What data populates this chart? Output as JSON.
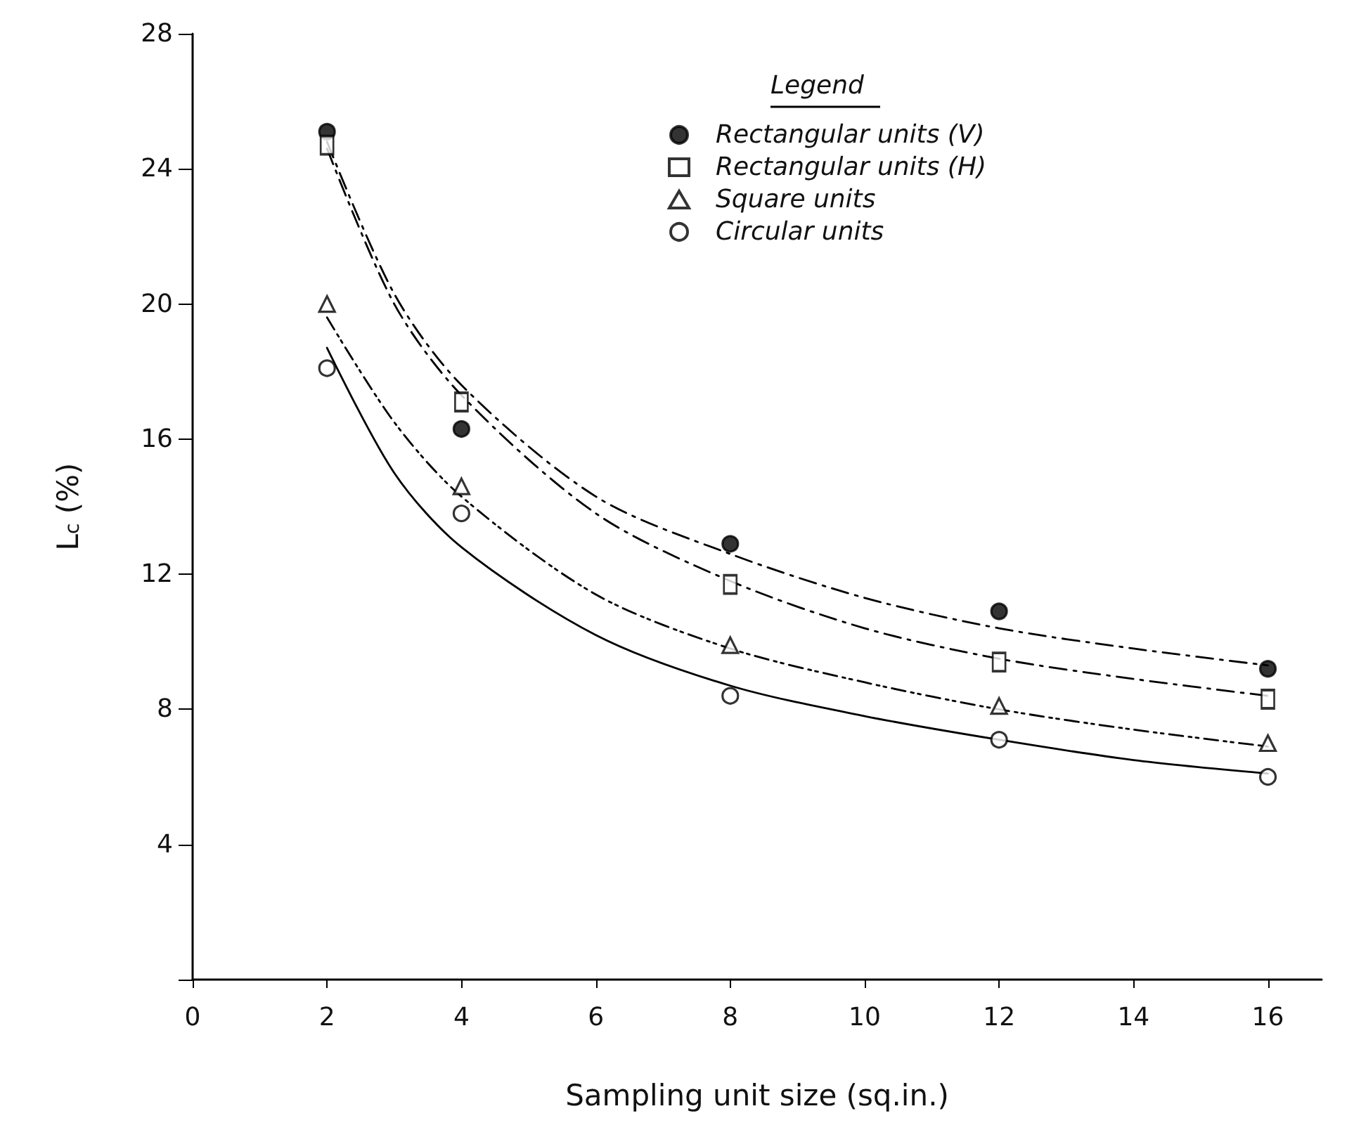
{
  "chart_data": {
    "type": "scatter",
    "xlabel": "Sampling unit size (sq.in.)",
    "ylabel": "L$_{c}$ (%)",
    "legend_title": "Legend",
    "legend": "top right",
    "grid": false,
    "x": [
      2,
      4,
      8,
      12,
      16
    ],
    "xlim": [
      0,
      16.8
    ],
    "xticks": [
      0,
      2,
      4,
      6,
      8,
      10,
      12,
      14,
      16
    ],
    "ylim": [
      0,
      28
    ],
    "yticks": [
      {
        "value": 0,
        "label": null
      },
      4,
      8,
      12,
      16,
      20,
      24,
      28
    ],
    "series": [
      {
        "name": "Rectangular units (V)",
        "color": "#000000",
        "marker": "circle",
        "values": [
          25.1,
          16.3,
          12.9,
          10.9,
          9.2
        ]
      },
      {
        "name": "Rectangular units (H)",
        "color": "#ffffff",
        "marker": "square",
        "values": [
          24.7,
          17.1,
          11.7,
          9.4,
          8.3
        ]
      },
      {
        "name": "Square units",
        "color": "#ffffff",
        "marker": "triangle",
        "values": [
          20.0,
          14.6,
          9.9,
          8.1,
          7.0
        ]
      },
      {
        "name": "Circular units",
        "color": "#ffffff",
        "marker": "circle",
        "values": [
          18.1,
          13.8,
          8.4,
          7.1,
          6.0
        ]
      },
      {
        "type": "line",
        "color": "#000000",
        "marker": "none",
        "line_style": "dashed",
        "x": [
          2,
          3,
          4,
          6,
          8,
          10,
          12,
          14,
          16
        ],
        "values": [
          24.8,
          20.3,
          17.6,
          14.3,
          12.6,
          11.3,
          10.4,
          9.8,
          9.3
        ]
      },
      {
        "type": "line",
        "color": "#000000",
        "marker": "none",
        "line_style": "dashed",
        "x": [
          2,
          3,
          4,
          6,
          8,
          10,
          12,
          14,
          16
        ],
        "values": [
          24.6,
          20.0,
          17.3,
          13.8,
          11.8,
          10.4,
          9.5,
          8.9,
          8.4
        ]
      },
      {
        "type": "line",
        "color": "#000000",
        "marker": "none",
        "line_style": "dotted",
        "x": [
          2,
          3,
          4,
          6,
          8,
          10,
          12,
          14,
          16
        ],
        "values": [
          19.6,
          16.5,
          14.3,
          11.4,
          9.8,
          8.8,
          8.0,
          7.4,
          6.9
        ]
      },
      {
        "type": "line",
        "color": "#000000",
        "marker": "none",
        "line_style": "solid",
        "x": [
          2,
          3,
          4,
          6,
          8,
          10,
          12,
          14,
          16
        ],
        "values": [
          18.7,
          15.0,
          12.8,
          10.2,
          8.7,
          7.8,
          7.1,
          6.5,
          6.1
        ]
      }
    ]
  }
}
